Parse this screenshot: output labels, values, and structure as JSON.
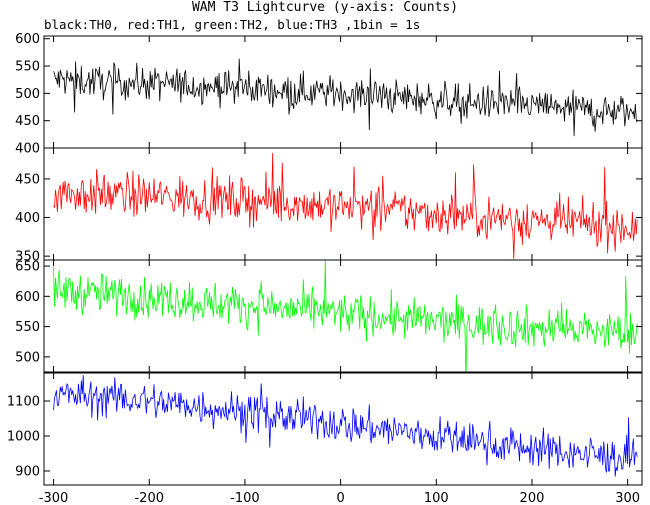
{
  "chart_data": {
    "type": "line",
    "title": "WAM T3 Lightcurve (y-axis: Counts)",
    "subtitle": "black:TH0, red:TH1, green:TH2, blue:TH3 ,1bin = 1s",
    "xlim": [
      -310,
      315
    ],
    "xticks": [
      -300,
      -200,
      -100,
      0,
      100,
      200,
      300
    ],
    "grid": false,
    "panels": [
      {
        "name": "TH0",
        "color": "#000000",
        "ylim": [
          400,
          605
        ],
        "yticks": [
          400,
          450,
          500,
          550,
          600
        ],
        "trend": [
          [
            -300,
            525
          ],
          [
            -200,
            518
          ],
          [
            -100,
            510
          ],
          [
            0,
            500
          ],
          [
            100,
            488
          ],
          [
            200,
            478
          ],
          [
            300,
            465
          ]
        ],
        "noise": 22
      },
      {
        "name": "TH1",
        "color": "#ff0000",
        "ylim": [
          345,
          490
        ],
        "yticks": [
          350,
          400,
          450
        ],
        "trend": [
          [
            -300,
            432
          ],
          [
            -200,
            428
          ],
          [
            -100,
            422
          ],
          [
            0,
            415
          ],
          [
            100,
            405
          ],
          [
            200,
            397
          ],
          [
            300,
            388
          ]
        ],
        "noise": 20
      },
      {
        "name": "TH2",
        "color": "#00ff00",
        "ylim": [
          475,
          660
        ],
        "yticks": [
          500,
          550,
          600,
          650
        ],
        "trend": [
          [
            -300,
            610
          ],
          [
            -200,
            598
          ],
          [
            -100,
            585
          ],
          [
            0,
            572
          ],
          [
            100,
            558
          ],
          [
            200,
            548
          ],
          [
            300,
            540
          ]
        ],
        "noise": 24
      },
      {
        "name": "TH3",
        "color": "#0000ff",
        "ylim": [
          860,
          1180
        ],
        "yticks": [
          900,
          1000,
          1100
        ],
        "trend": [
          [
            -300,
            1120
          ],
          [
            -200,
            1100
          ],
          [
            -100,
            1070
          ],
          [
            0,
            1035
          ],
          [
            100,
            1000
          ],
          [
            200,
            965
          ],
          [
            300,
            935
          ]
        ],
        "noise": 38
      }
    ]
  }
}
